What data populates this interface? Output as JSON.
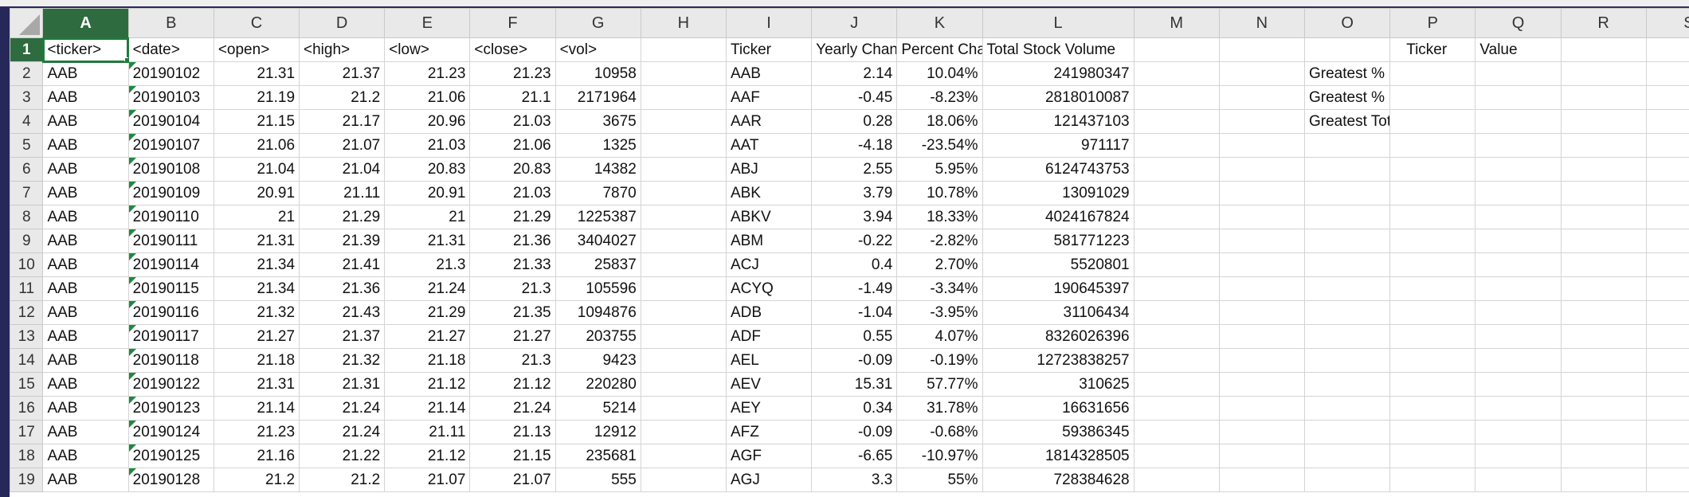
{
  "columns": [
    "A",
    "B",
    "C",
    "D",
    "E",
    "F",
    "G",
    "H",
    "I",
    "J",
    "K",
    "L",
    "M",
    "N",
    "O",
    "P",
    "Q",
    "R",
    "S"
  ],
  "selected_column": "A",
  "selected_row": 1,
  "header_row": {
    "A": "<ticker>",
    "B": "<date>",
    "C": "<open>",
    "D": "<high>",
    "E": "<low>",
    "F": "<close>",
    "G": "<vol>",
    "H": "",
    "I": "Ticker",
    "J": "Yearly Change",
    "K": "Percent Change",
    "L": "Total Stock Volume",
    "M": "",
    "N": "",
    "O": "",
    "P": "Ticker",
    "Q": "Value",
    "R": "",
    "S": ""
  },
  "rows": [
    {
      "row": 2,
      "ticker": "AAB",
      "date": "20190102",
      "open": "21.31",
      "high": "21.37",
      "low": "21.23",
      "close": "21.23",
      "vol": "10958",
      "summary_ticker": "AAB",
      "yearly_change": "2.14",
      "percent_change": "10.04%",
      "total_volume": "241980347",
      "label": "Greatest % Increase"
    },
    {
      "row": 3,
      "ticker": "AAB",
      "date": "20190103",
      "open": "21.19",
      "high": "21.2",
      "low": "21.06",
      "close": "21.1",
      "vol": "2171964",
      "summary_ticker": "AAF",
      "yearly_change": "-0.45",
      "percent_change": "-8.23%",
      "total_volume": "2818010087",
      "label": "Greatest % Decrease"
    },
    {
      "row": 4,
      "ticker": "AAB",
      "date": "20190104",
      "open": "21.15",
      "high": "21.17",
      "low": "20.96",
      "close": "21.03",
      "vol": "3675",
      "summary_ticker": "AAR",
      "yearly_change": "0.28",
      "percent_change": "18.06%",
      "total_volume": "121437103",
      "label": "Greatest Total Volume"
    },
    {
      "row": 5,
      "ticker": "AAB",
      "date": "20190107",
      "open": "21.06",
      "high": "21.07",
      "low": "21.03",
      "close": "21.06",
      "vol": "1325",
      "summary_ticker": "AAT",
      "yearly_change": "-4.18",
      "percent_change": "-23.54%",
      "total_volume": "971117",
      "label": ""
    },
    {
      "row": 6,
      "ticker": "AAB",
      "date": "20190108",
      "open": "21.04",
      "high": "21.04",
      "low": "20.83",
      "close": "20.83",
      "vol": "14382",
      "summary_ticker": "ABJ",
      "yearly_change": "2.55",
      "percent_change": "5.95%",
      "total_volume": "6124743753",
      "label": ""
    },
    {
      "row": 7,
      "ticker": "AAB",
      "date": "20190109",
      "open": "20.91",
      "high": "21.11",
      "low": "20.91",
      "close": "21.03",
      "vol": "7870",
      "summary_ticker": "ABK",
      "yearly_change": "3.79",
      "percent_change": "10.78%",
      "total_volume": "13091029",
      "label": ""
    },
    {
      "row": 8,
      "ticker": "AAB",
      "date": "20190110",
      "open": "21",
      "high": "21.29",
      "low": "21",
      "close": "21.29",
      "vol": "1225387",
      "summary_ticker": "ABKV",
      "yearly_change": "3.94",
      "percent_change": "18.33%",
      "total_volume": "4024167824",
      "label": ""
    },
    {
      "row": 9,
      "ticker": "AAB",
      "date": "20190111",
      "open": "21.31",
      "high": "21.39",
      "low": "21.31",
      "close": "21.36",
      "vol": "3404027",
      "summary_ticker": "ABM",
      "yearly_change": "-0.22",
      "percent_change": "-2.82%",
      "total_volume": "581771223",
      "label": ""
    },
    {
      "row": 10,
      "ticker": "AAB",
      "date": "20190114",
      "open": "21.34",
      "high": "21.41",
      "low": "21.3",
      "close": "21.33",
      "vol": "25837",
      "summary_ticker": "ACJ",
      "yearly_change": "0.4",
      "percent_change": "2.70%",
      "total_volume": "5520801",
      "label": ""
    },
    {
      "row": 11,
      "ticker": "AAB",
      "date": "20190115",
      "open": "21.34",
      "high": "21.36",
      "low": "21.24",
      "close": "21.3",
      "vol": "105596",
      "summary_ticker": "ACYQ",
      "yearly_change": "-1.49",
      "percent_change": "-3.34%",
      "total_volume": "190645397",
      "label": ""
    },
    {
      "row": 12,
      "ticker": "AAB",
      "date": "20190116",
      "open": "21.32",
      "high": "21.43",
      "low": "21.29",
      "close": "21.35",
      "vol": "1094876",
      "summary_ticker": "ADB",
      "yearly_change": "-1.04",
      "percent_change": "-3.95%",
      "total_volume": "31106434",
      "label": ""
    },
    {
      "row": 13,
      "ticker": "AAB",
      "date": "20190117",
      "open": "21.27",
      "high": "21.37",
      "low": "21.27",
      "close": "21.27",
      "vol": "203755",
      "summary_ticker": "ADF",
      "yearly_change": "0.55",
      "percent_change": "4.07%",
      "total_volume": "8326026396",
      "label": ""
    },
    {
      "row": 14,
      "ticker": "AAB",
      "date": "20190118",
      "open": "21.18",
      "high": "21.32",
      "low": "21.18",
      "close": "21.3",
      "vol": "9423",
      "summary_ticker": "AEL",
      "yearly_change": "-0.09",
      "percent_change": "-0.19%",
      "total_volume": "12723838257",
      "label": ""
    },
    {
      "row": 15,
      "ticker": "AAB",
      "date": "20190122",
      "open": "21.31",
      "high": "21.31",
      "low": "21.12",
      "close": "21.12",
      "vol": "220280",
      "summary_ticker": "AEV",
      "yearly_change": "15.31",
      "percent_change": "57.77%",
      "total_volume": "310625",
      "label": ""
    },
    {
      "row": 16,
      "ticker": "AAB",
      "date": "20190123",
      "open": "21.14",
      "high": "21.24",
      "low": "21.14",
      "close": "21.24",
      "vol": "5214",
      "summary_ticker": "AEY",
      "yearly_change": "0.34",
      "percent_change": "31.78%",
      "total_volume": "16631656",
      "label": ""
    },
    {
      "row": 17,
      "ticker": "AAB",
      "date": "20190124",
      "open": "21.23",
      "high": "21.24",
      "low": "21.11",
      "close": "21.13",
      "vol": "12912",
      "summary_ticker": "AFZ",
      "yearly_change": "-0.09",
      "percent_change": "-0.68%",
      "total_volume": "59386345",
      "label": ""
    },
    {
      "row": 18,
      "ticker": "AAB",
      "date": "20190125",
      "open": "21.16",
      "high": "21.22",
      "low": "21.12",
      "close": "21.15",
      "vol": "235681",
      "summary_ticker": "AGF",
      "yearly_change": "-6.65",
      "percent_change": "-10.97%",
      "total_volume": "1814328505",
      "label": ""
    },
    {
      "row": 19,
      "ticker": "AAB",
      "date": "20190128",
      "open": "21.2",
      "high": "21.2",
      "low": "21.07",
      "close": "21.07",
      "vol": "555",
      "summary_ticker": "AGJ",
      "yearly_change": "3.3",
      "percent_change": "55%",
      "total_volume": "728384628",
      "label": ""
    }
  ],
  "colors": {
    "selected_header": "#2e6b3f",
    "header_bg": "#e9e9e9",
    "gridline": "#d4d4d4",
    "number_stored_as_text_flag": "#1f8a3f"
  }
}
